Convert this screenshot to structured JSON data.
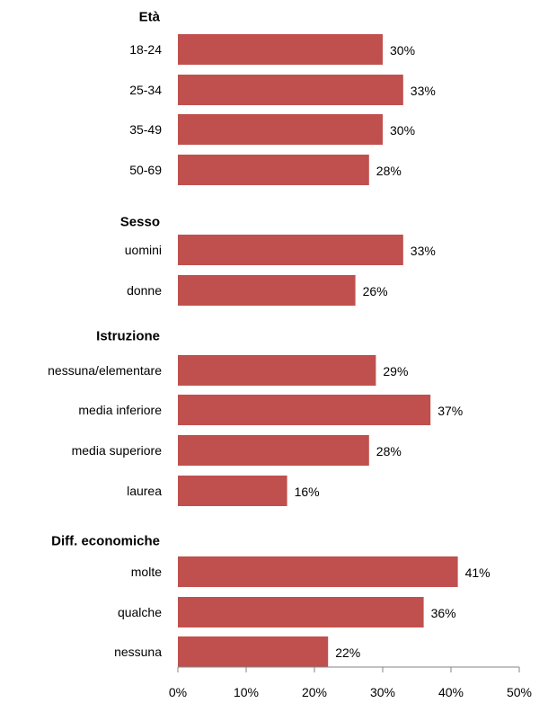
{
  "chart_data": {
    "type": "bar",
    "orientation": "horizontal",
    "bar_color": "#C0504D",
    "axis_color": "#868686",
    "xlim": [
      0,
      50
    ],
    "ticks": [
      0,
      10,
      20,
      30,
      40,
      50
    ],
    "tick_labels": [
      "0%",
      "10%",
      "20%",
      "30%",
      "40%",
      "50%"
    ],
    "grid": false,
    "groups": [
      {
        "title": "Età",
        "items": [
          {
            "label": "18-24",
            "value": 30,
            "value_label": "30%"
          },
          {
            "label": "25-34",
            "value": 33,
            "value_label": "33%"
          },
          {
            "label": "35-49",
            "value": 30,
            "value_label": "30%"
          },
          {
            "label": "50-69",
            "value": 28,
            "value_label": "28%"
          }
        ]
      },
      {
        "title": "Sesso",
        "items": [
          {
            "label": "uomini",
            "value": 33,
            "value_label": "33%"
          },
          {
            "label": "donne",
            "value": 26,
            "value_label": "26%"
          }
        ]
      },
      {
        "title": "Istruzione",
        "items": [
          {
            "label": "nessuna/elementare",
            "value": 29,
            "value_label": "29%"
          },
          {
            "label": "media inferiore",
            "value": 37,
            "value_label": "37%"
          },
          {
            "label": "media superiore",
            "value": 28,
            "value_label": "28%"
          },
          {
            "label": "laurea",
            "value": 16,
            "value_label": "16%"
          }
        ]
      },
      {
        "title": "Diff. economiche",
        "items": [
          {
            "label": "molte",
            "value": 41,
            "value_label": "41%"
          },
          {
            "label": "qualche",
            "value": 36,
            "value_label": "36%"
          },
          {
            "label": "nessuna",
            "value": 22,
            "value_label": "22%"
          }
        ]
      }
    ]
  }
}
